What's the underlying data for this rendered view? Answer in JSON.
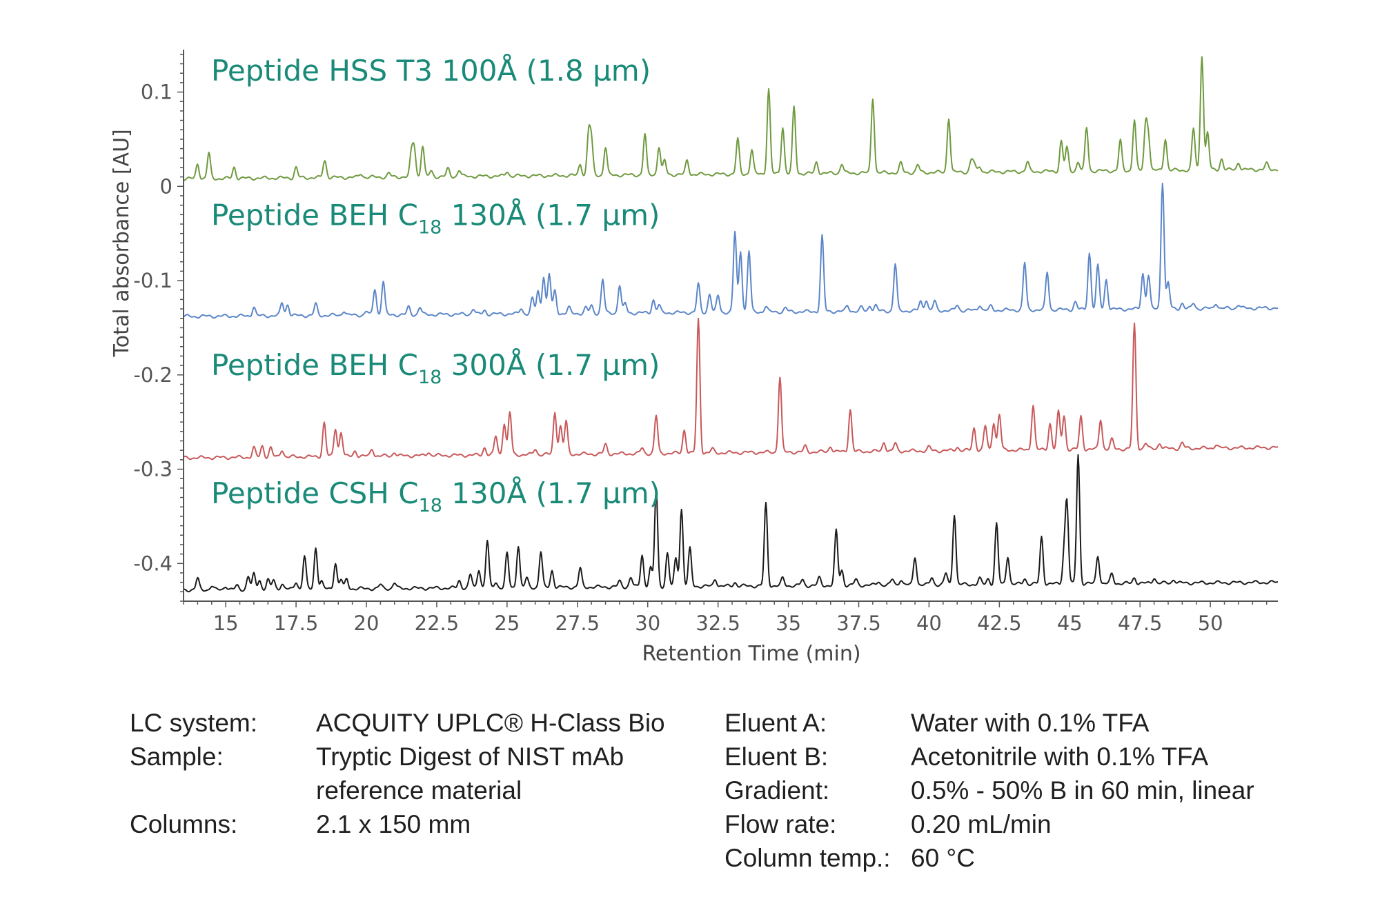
{
  "chart_data": {
    "type": "line",
    "xlabel": "Retention Time (min)",
    "ylabel": "Total absorbance [AU]",
    "xlim": [
      13.5,
      52.4
    ],
    "ylim": [
      -0.44,
      0.145
    ],
    "xticks": [
      15,
      17.5,
      20,
      22.5,
      25,
      27.5,
      30,
      32.5,
      35,
      37.5,
      40,
      42.5,
      45,
      47.5,
      50
    ],
    "xtick_labels": [
      "15",
      "17.5",
      "20",
      "22.5",
      "25",
      "27.5",
      "30",
      "32.5",
      "35",
      "37.5",
      "40",
      "42.5",
      "45",
      "47.5",
      "50"
    ],
    "yticks": [
      0.1,
      0,
      -0.1,
      -0.2,
      -0.3,
      -0.4
    ],
    "ytick_labels": [
      "0.1",
      "0",
      "-0.1",
      "-0.2",
      "-0.3",
      "-0.4"
    ],
    "grid": false,
    "series": [
      {
        "name": "Peptide HSS T3 100Å (1.8 µm)",
        "label_main": "Peptide HSS T3 100Å (1.8 µm)",
        "label_sub": "",
        "label_tail": "",
        "color": "#6f9a3f",
        "baseline_start": 0.008,
        "baseline_end": 0.018,
        "label_y": 0.112,
        "peaks": [
          [
            14.0,
            0.016
          ],
          [
            14.4,
            0.027
          ],
          [
            15.3,
            0.012
          ],
          [
            17.5,
            0.011
          ],
          [
            18.5,
            0.012
          ],
          [
            18.55,
            0.008
          ],
          [
            19.8,
            0.004
          ],
          [
            20.8,
            0.004
          ],
          [
            21.6,
            0.024
          ],
          [
            21.7,
            0.03
          ],
          [
            22.0,
            0.033
          ],
          [
            22.3,
            0.006
          ],
          [
            22.9,
            0.008
          ],
          [
            23.3,
            0.007
          ],
          [
            25.0,
            0.005
          ],
          [
            27.6,
            0.012
          ],
          [
            27.9,
            0.044
          ],
          [
            28.0,
            0.035
          ],
          [
            28.5,
            0.03
          ],
          [
            29.9,
            0.043
          ],
          [
            30.4,
            0.03
          ],
          [
            30.6,
            0.015
          ],
          [
            31.4,
            0.015
          ],
          [
            33.2,
            0.037
          ],
          [
            33.7,
            0.026
          ],
          [
            34.3,
            0.09
          ],
          [
            34.8,
            0.05
          ],
          [
            35.2,
            0.07
          ],
          [
            36.0,
            0.012
          ],
          [
            36.9,
            0.01
          ],
          [
            38.0,
            0.08
          ],
          [
            39.0,
            0.01
          ],
          [
            39.6,
            0.008
          ],
          [
            40.7,
            0.058
          ],
          [
            41.5,
            0.012
          ],
          [
            41.6,
            0.008
          ],
          [
            41.8,
            0.006
          ],
          [
            43.5,
            0.01
          ],
          [
            44.7,
            0.032
          ],
          [
            44.9,
            0.025
          ],
          [
            45.3,
            0.01
          ],
          [
            45.6,
            0.046
          ],
          [
            46.8,
            0.032
          ],
          [
            47.3,
            0.054
          ],
          [
            47.7,
            0.048
          ],
          [
            47.8,
            0.034
          ],
          [
            48.4,
            0.034
          ],
          [
            49.4,
            0.044
          ],
          [
            49.7,
            0.122
          ],
          [
            49.9,
            0.04
          ],
          [
            50.4,
            0.012
          ],
          [
            51.0,
            0.008
          ],
          [
            52.0,
            0.006
          ]
        ]
      },
      {
        "name": "Peptide BEH C18 130Å (1.7 µm)",
        "label_main": "Peptide BEH C",
        "label_sub": "18",
        "label_tail": " 130Å  (1.7 µm)",
        "color": "#5b86c8",
        "baseline_start": -0.138,
        "baseline_end": -0.129,
        "label_y": -0.041,
        "peaks": [
          [
            16.0,
            0.01
          ],
          [
            17.0,
            0.014
          ],
          [
            17.2,
            0.012
          ],
          [
            18.2,
            0.012
          ],
          [
            19.2,
            0.005
          ],
          [
            20.0,
            0.004
          ],
          [
            20.3,
            0.028
          ],
          [
            20.6,
            0.036
          ],
          [
            21.5,
            0.008
          ],
          [
            21.9,
            0.008
          ],
          [
            23.8,
            0.006
          ],
          [
            24.2,
            0.004
          ],
          [
            25.5,
            0.006
          ],
          [
            25.9,
            0.016
          ],
          [
            26.1,
            0.024
          ],
          [
            26.3,
            0.04
          ],
          [
            26.5,
            0.042
          ],
          [
            26.7,
            0.024
          ],
          [
            27.2,
            0.006
          ],
          [
            27.8,
            0.006
          ],
          [
            28.0,
            0.008
          ],
          [
            28.4,
            0.036
          ],
          [
            29.0,
            0.03
          ],
          [
            29.2,
            0.01
          ],
          [
            30.2,
            0.014
          ],
          [
            30.4,
            0.008
          ],
          [
            31.8,
            0.03
          ],
          [
            32.2,
            0.02
          ],
          [
            32.5,
            0.018
          ],
          [
            33.1,
            0.085
          ],
          [
            33.3,
            0.065
          ],
          [
            33.6,
            0.065
          ],
          [
            34.2,
            0.006
          ],
          [
            34.9,
            0.004
          ],
          [
            36.2,
            0.08
          ],
          [
            37.1,
            0.006
          ],
          [
            37.6,
            0.004
          ],
          [
            37.9,
            0.006
          ],
          [
            38.1,
            0.006
          ],
          [
            38.8,
            0.05
          ],
          [
            39.7,
            0.01
          ],
          [
            39.9,
            0.012
          ],
          [
            40.2,
            0.01
          ],
          [
            41.0,
            0.006
          ],
          [
            41.8,
            0.006
          ],
          [
            42.2,
            0.004
          ],
          [
            43.4,
            0.05
          ],
          [
            44.2,
            0.04
          ],
          [
            45.2,
            0.008
          ],
          [
            45.7,
            0.06
          ],
          [
            46.0,
            0.046
          ],
          [
            46.3,
            0.032
          ],
          [
            47.6,
            0.038
          ],
          [
            47.8,
            0.036
          ],
          [
            48.3,
            0.135
          ],
          [
            48.5,
            0.028
          ],
          [
            49.0,
            0.006
          ],
          [
            49.4,
            0.006
          ],
          [
            50.2,
            0.006
          ],
          [
            51.0,
            0.004
          ]
        ]
      },
      {
        "name": "Peptide BEH C18 300Å (1.7 µm)",
        "label_main": "Peptide BEH C",
        "label_sub": "18",
        "label_tail": " 300Å  (1.7 µm)",
        "color": "#c8585a",
        "baseline_start": -0.288,
        "baseline_end": -0.277,
        "label_y": -0.2,
        "peaks": [
          [
            16.0,
            0.01
          ],
          [
            16.3,
            0.012
          ],
          [
            16.6,
            0.01
          ],
          [
            17.0,
            0.008
          ],
          [
            18.5,
            0.036
          ],
          [
            18.9,
            0.03
          ],
          [
            19.1,
            0.026
          ],
          [
            19.6,
            0.006
          ],
          [
            20.2,
            0.008
          ],
          [
            21.0,
            0.004
          ],
          [
            22.2,
            0.004
          ],
          [
            24.2,
            0.008
          ],
          [
            24.6,
            0.02
          ],
          [
            24.9,
            0.034
          ],
          [
            25.1,
            0.045
          ],
          [
            26.0,
            0.006
          ],
          [
            26.7,
            0.045
          ],
          [
            26.9,
            0.03
          ],
          [
            27.1,
            0.035
          ],
          [
            28.5,
            0.01
          ],
          [
            29.8,
            0.006
          ],
          [
            30.3,
            0.04
          ],
          [
            31.3,
            0.025
          ],
          [
            31.8,
            0.142
          ],
          [
            32.3,
            0.004
          ],
          [
            34.7,
            0.08
          ],
          [
            35.6,
            0.006
          ],
          [
            36.5,
            0.006
          ],
          [
            37.2,
            0.045
          ],
          [
            38.4,
            0.01
          ],
          [
            38.8,
            0.008
          ],
          [
            40.0,
            0.004
          ],
          [
            41.0,
            0.004
          ],
          [
            41.6,
            0.024
          ],
          [
            42.0,
            0.026
          ],
          [
            42.3,
            0.03
          ],
          [
            42.5,
            0.038
          ],
          [
            43.7,
            0.048
          ],
          [
            44.3,
            0.028
          ],
          [
            44.6,
            0.04
          ],
          [
            44.8,
            0.036
          ],
          [
            45.4,
            0.035
          ],
          [
            46.1,
            0.032
          ],
          [
            46.5,
            0.01
          ],
          [
            47.3,
            0.132
          ],
          [
            47.7,
            0.006
          ],
          [
            48.2,
            0.006
          ],
          [
            49.0,
            0.006
          ],
          [
            50.2,
            0.004
          ]
        ]
      },
      {
        "name": "Peptide CSH C18 130Å (1.7 µm)",
        "label_main": "Peptide CSH C",
        "label_sub": "18",
        "label_tail": " 130Å (1.7 µm)",
        "color": "#1a1a1a",
        "baseline_start": -0.428,
        "baseline_end": -0.42,
        "label_y": -0.336,
        "peaks": [
          [
            14.0,
            0.012
          ],
          [
            14.5,
            0.004
          ],
          [
            15.0,
            0.004
          ],
          [
            15.4,
            0.004
          ],
          [
            15.8,
            0.014
          ],
          [
            16.0,
            0.016
          ],
          [
            16.2,
            0.01
          ],
          [
            16.5,
            0.01
          ],
          [
            16.7,
            0.01
          ],
          [
            17.0,
            0.006
          ],
          [
            17.5,
            0.008
          ],
          [
            17.8,
            0.035
          ],
          [
            18.2,
            0.044
          ],
          [
            18.4,
            0.008
          ],
          [
            18.9,
            0.028
          ],
          [
            19.1,
            0.01
          ],
          [
            19.3,
            0.01
          ],
          [
            20.5,
            0.004
          ],
          [
            21.0,
            0.006
          ],
          [
            23.3,
            0.008
          ],
          [
            23.7,
            0.014
          ],
          [
            24.0,
            0.02
          ],
          [
            24.3,
            0.05
          ],
          [
            24.6,
            0.006
          ],
          [
            25.0,
            0.036
          ],
          [
            25.4,
            0.045
          ],
          [
            25.7,
            0.01
          ],
          [
            26.2,
            0.038
          ],
          [
            26.6,
            0.018
          ],
          [
            27.6,
            0.02
          ],
          [
            29.0,
            0.006
          ],
          [
            29.4,
            0.01
          ],
          [
            29.8,
            0.034
          ],
          [
            30.1,
            0.02
          ],
          [
            30.3,
            0.103
          ],
          [
            30.7,
            0.035
          ],
          [
            31.0,
            0.03
          ],
          [
            31.2,
            0.082
          ],
          [
            31.5,
            0.04
          ],
          [
            32.4,
            0.008
          ],
          [
            33.1,
            0.004
          ],
          [
            34.2,
            0.087
          ],
          [
            34.8,
            0.008
          ],
          [
            35.5,
            0.006
          ],
          [
            36.1,
            0.008
          ],
          [
            36.7,
            0.058
          ],
          [
            36.9,
            0.016
          ],
          [
            37.4,
            0.006
          ],
          [
            38.2,
            0.004
          ],
          [
            38.7,
            0.006
          ],
          [
            39.0,
            0.006
          ],
          [
            39.5,
            0.03
          ],
          [
            40.1,
            0.008
          ],
          [
            40.6,
            0.012
          ],
          [
            40.9,
            0.075
          ],
          [
            41.8,
            0.006
          ],
          [
            42.1,
            0.006
          ],
          [
            42.4,
            0.064
          ],
          [
            42.8,
            0.03
          ],
          [
            43.4,
            0.006
          ],
          [
            44.0,
            0.05
          ],
          [
            44.8,
            0.03
          ],
          [
            44.9,
            0.085
          ],
          [
            45.3,
            0.137
          ],
          [
            46.0,
            0.03
          ],
          [
            46.5,
            0.01
          ],
          [
            47.3,
            0.006
          ],
          [
            48.0,
            0.006
          ],
          [
            48.7,
            0.004
          ]
        ]
      }
    ]
  },
  "conditions": {
    "left": [
      {
        "key": "LC system:",
        "value": "ACQUITY UPLC® H-Class Bio"
      },
      {
        "key": "Sample:",
        "value": "Tryptic Digest of NIST mAb\nreference material"
      },
      {
        "key": "Columns:",
        "value": "2.1 x 150 mm"
      }
    ],
    "right": [
      {
        "key": "Eluent A:",
        "value": "Water with 0.1% TFA"
      },
      {
        "key": "Eluent B:",
        "value": "Acetonitrile with 0.1% TFA"
      },
      {
        "key": "Gradient:",
        "value": "0.5% - 50% B in 60 min, linear"
      },
      {
        "key": "Flow rate:",
        "value": "0.20 mL/min"
      },
      {
        "key": "Column temp.:",
        "value": "60 °C"
      }
    ]
  }
}
